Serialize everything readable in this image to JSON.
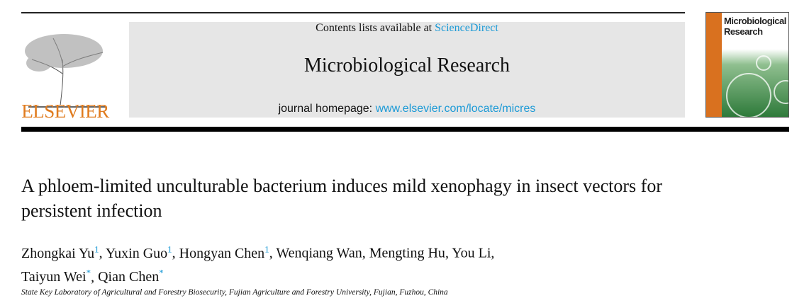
{
  "header": {
    "contents_prefix": "Contents lists available at ",
    "contents_link": "ScienceDirect",
    "journal_title": "Microbiological Research",
    "homepage_prefix": "journal homepage: ",
    "homepage_link": "www.elsevier.com/locate/micres",
    "publisher": "ELSEVIER",
    "cover_title_line1": "Microbiological",
    "cover_title_line2": "Research",
    "link_color": "#1c9ad6",
    "publisher_color": "#e07b1e"
  },
  "article": {
    "title": "A phloem-limited unculturable bacterium induces mild xenophagy in insect vectors for persistent infection",
    "authors": [
      {
        "name": "Zhongkai Yu",
        "mark": "1"
      },
      {
        "name": "Yuxin Guo",
        "mark": "1"
      },
      {
        "name": "Hongyan Chen",
        "mark": "1"
      },
      {
        "name": "Wenqiang Wan",
        "mark": ""
      },
      {
        "name": "Mengting Hu",
        "mark": ""
      },
      {
        "name": "You Li",
        "mark": ""
      },
      {
        "name": "Taiyun Wei",
        "mark": "*"
      },
      {
        "name": "Qian Chen",
        "mark": "*"
      }
    ],
    "affiliation": "State Key Laboratory of Agricultural and Forestry Biosecurity, Fujian Agriculture and Forestry University, Fujian, Fuzhou, China"
  }
}
